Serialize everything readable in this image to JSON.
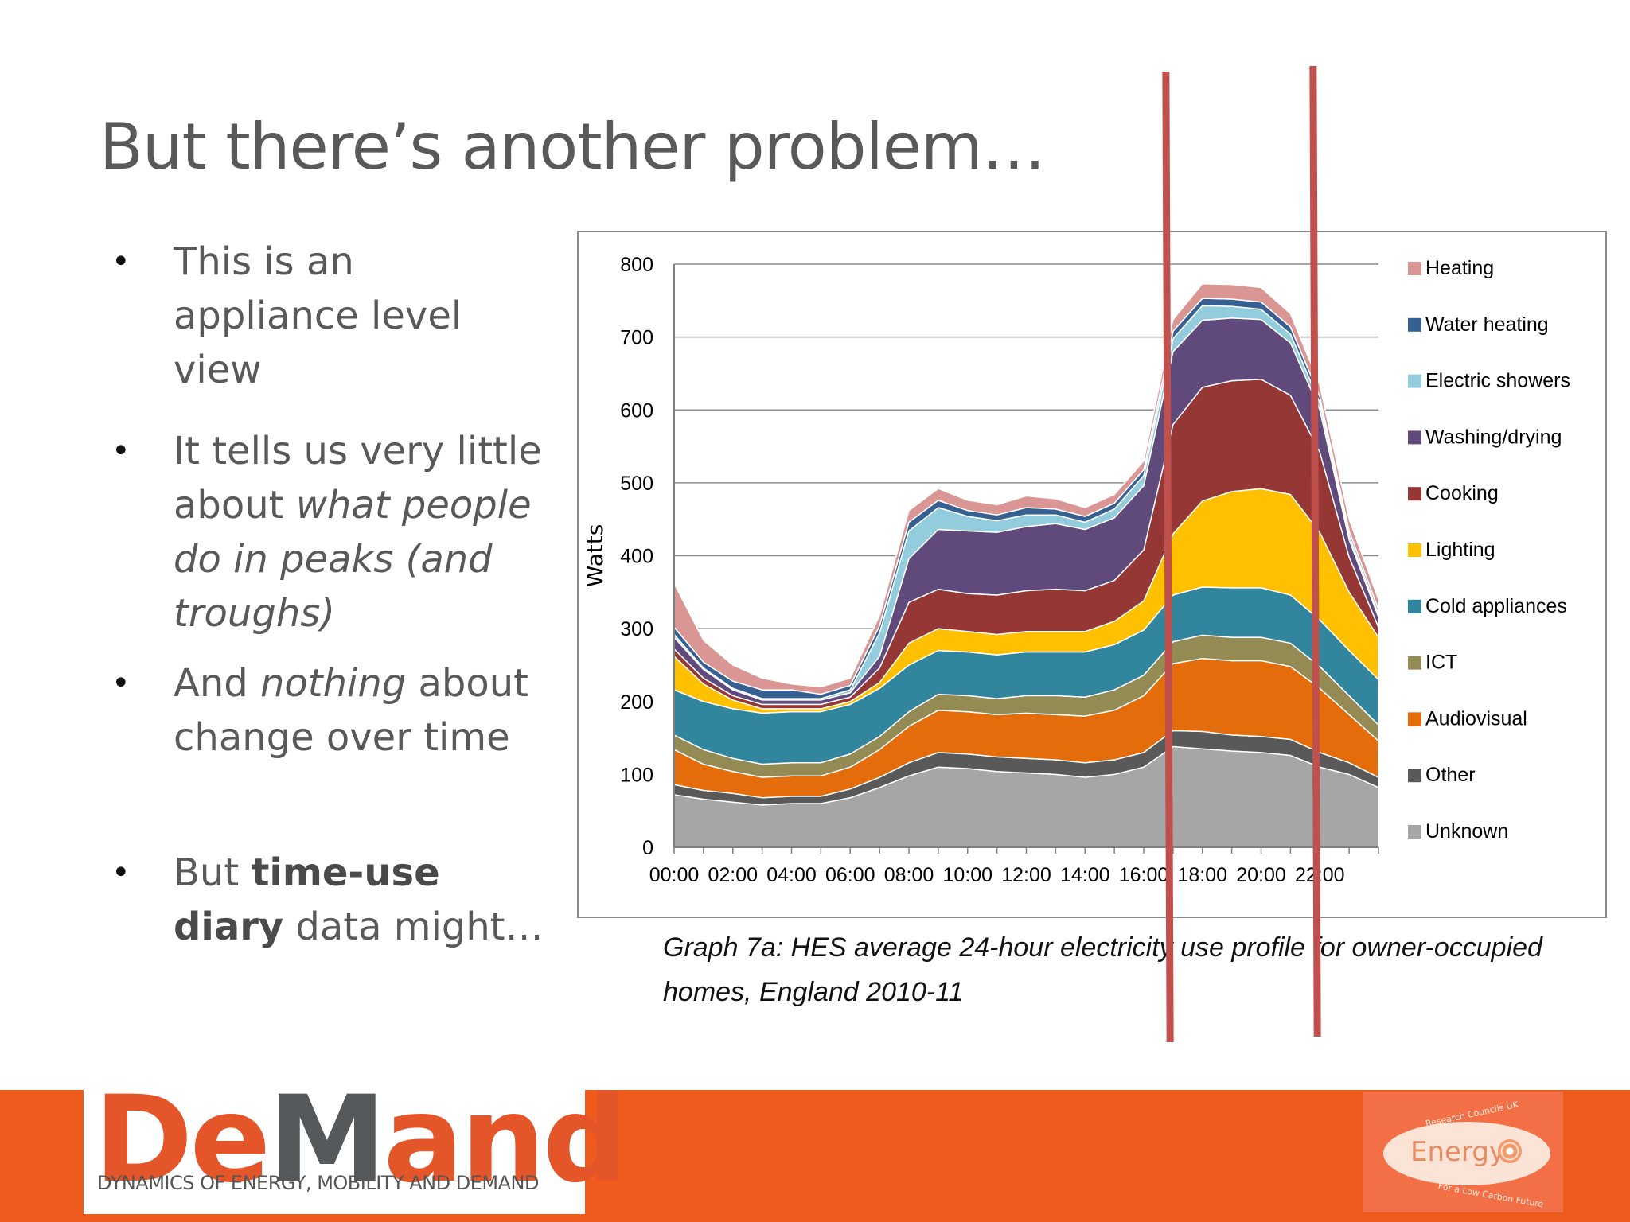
{
  "slide": {
    "title": "But there’s another problem…",
    "bullets": [
      {
        "segments": [
          {
            "text": "This is an appliance level view",
            "style": "normal"
          }
        ]
      },
      {
        "segments": [
          {
            "text": "It tells us very little about ",
            "style": "normal"
          },
          {
            "text": "what people do in peaks (and troughs)",
            "style": "italic"
          }
        ]
      },
      {
        "segments": [
          {
            "text": "And ",
            "style": "normal"
          },
          {
            "text": "nothing",
            "style": "italic"
          },
          {
            "text": " about change over time",
            "style": "normal"
          }
        ]
      },
      {
        "segments": [
          {
            "text": "But ",
            "style": "normal"
          },
          {
            "text": "time-use diary",
            "style": "bold"
          },
          {
            "text": " data might…",
            "style": "normal"
          }
        ]
      }
    ],
    "caption": "Graph 7a: HES average 24-hour electricity use profile for owner-occupied homes, England 2010-11",
    "footer": {
      "logo_word_a": "De",
      "logo_word_m": "M",
      "logo_word_b": "and",
      "logo_tagline": "DYNAMICS OF ENERGY, MOBILITY AND DEMAND",
      "partner_logo": "Energy",
      "partner_line1": "Research Councils UK",
      "partner_line2": "For a Low Carbon Future"
    },
    "annotations": {
      "highlight_color": "#c0504d",
      "highlight_lines_at": [
        "17:00",
        "22:00"
      ]
    }
  },
  "chart_data": {
    "type": "area",
    "stacked": true,
    "ylabel": "Watts",
    "xlabel": "",
    "ylim": [
      0,
      800
    ],
    "yticks": [
      0,
      100,
      200,
      300,
      400,
      500,
      600,
      700,
      800
    ],
    "grid": true,
    "legend_position": "right",
    "x": [
      "00:00",
      "01:00",
      "02:00",
      "03:00",
      "04:00",
      "05:00",
      "06:00",
      "07:00",
      "08:00",
      "09:00",
      "10:00",
      "11:00",
      "12:00",
      "13:00",
      "14:00",
      "15:00",
      "16:00",
      "17:00",
      "18:00",
      "19:00",
      "20:00",
      "21:00",
      "22:00",
      "23:00",
      "24:00"
    ],
    "xtick_labels": [
      "00:00",
      "02:00",
      "04:00",
      "06:00",
      "08:00",
      "10:00",
      "12:00",
      "14:00",
      "16:00",
      "18:00",
      "20:00",
      "22:00"
    ],
    "series": [
      {
        "name": "Unknown",
        "color": "#a6a6a6",
        "values": [
          72,
          66,
          62,
          58,
          60,
          60,
          68,
          82,
          98,
          110,
          108,
          104,
          102,
          100,
          96,
          100,
          110,
          138,
          135,
          132,
          130,
          126,
          110,
          100,
          82
        ]
      },
      {
        "name": "Other",
        "color": "#595959",
        "values": [
          14,
          12,
          12,
          10,
          10,
          10,
          12,
          14,
          18,
          20,
          20,
          20,
          20,
          20,
          20,
          20,
          20,
          22,
          24,
          22,
          22,
          22,
          20,
          16,
          14
        ]
      },
      {
        "name": "Audiovisual",
        "color": "#e46c0a",
        "values": [
          48,
          36,
          30,
          28,
          28,
          28,
          30,
          38,
          50,
          58,
          58,
          58,
          62,
          62,
          64,
          68,
          78,
          92,
          100,
          102,
          104,
          100,
          88,
          66,
          50
        ]
      },
      {
        "name": "ICT",
        "color": "#948a54",
        "values": [
          20,
          20,
          18,
          18,
          18,
          18,
          18,
          18,
          20,
          22,
          22,
          22,
          24,
          26,
          26,
          28,
          28,
          30,
          32,
          32,
          32,
          32,
          30,
          26,
          22
        ]
      },
      {
        "name": "Cold appliances",
        "color": "#31859c",
        "values": [
          62,
          66,
          68,
          70,
          70,
          70,
          68,
          66,
          64,
          60,
          60,
          60,
          60,
          60,
          62,
          62,
          62,
          64,
          66,
          68,
          68,
          66,
          64,
          62,
          62
        ]
      },
      {
        "name": "Lighting",
        "color": "#ffc000",
        "values": [
          46,
          24,
          12,
          6,
          4,
          4,
          4,
          8,
          30,
          30,
          28,
          28,
          28,
          28,
          28,
          32,
          40,
          84,
          118,
          132,
          136,
          138,
          120,
          80,
          58
        ]
      },
      {
        "name": "Cooking",
        "color": "#953735",
        "values": [
          10,
          8,
          6,
          6,
          6,
          6,
          6,
          20,
          56,
          54,
          52,
          54,
          56,
          58,
          56,
          56,
          70,
          150,
          156,
          152,
          150,
          136,
          110,
          48,
          14
        ]
      },
      {
        "name": "Washing/drying",
        "color": "#604a7b",
        "values": [
          16,
          12,
          8,
          6,
          6,
          6,
          6,
          16,
          60,
          82,
          86,
          86,
          88,
          90,
          84,
          86,
          88,
          100,
          92,
          86,
          82,
          72,
          58,
          24,
          14
        ]
      },
      {
        "name": "Electric showers",
        "color": "#93cddd",
        "values": [
          4,
          2,
          2,
          2,
          2,
          2,
          4,
          32,
          38,
          30,
          20,
          16,
          16,
          12,
          10,
          12,
          14,
          18,
          20,
          16,
          14,
          12,
          10,
          6,
          4
        ]
      },
      {
        "name": "Water heating",
        "color": "#376092",
        "values": [
          10,
          8,
          10,
          12,
          12,
          6,
          6,
          10,
          12,
          10,
          8,
          8,
          10,
          8,
          8,
          8,
          8,
          10,
          10,
          10,
          10,
          10,
          8,
          6,
          6
        ]
      },
      {
        "name": "Heating",
        "color": "#d99694",
        "values": [
          60,
          30,
          22,
          16,
          8,
          10,
          10,
          14,
          16,
          16,
          14,
          14,
          16,
          14,
          12,
          12,
          12,
          16,
          20,
          20,
          20,
          18,
          16,
          16,
          14
        ]
      }
    ]
  }
}
